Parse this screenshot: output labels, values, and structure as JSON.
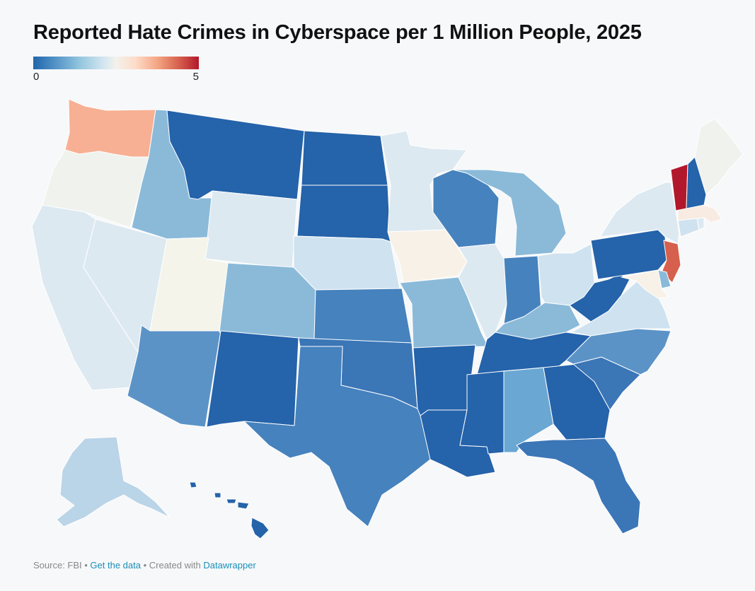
{
  "title": "Reported Hate Crimes in Cyberspace per 1 Million People, 2025",
  "legend": {
    "min_label": "0",
    "max_label": "5"
  },
  "footer": {
    "source": "Source: FBI",
    "sep1": " • ",
    "get_data": "Get the data",
    "sep2": " • Created with ",
    "datawrapper": "Datawrapper"
  },
  "colors": {
    "WA": "#f7b093",
    "OR": "#eff2ed",
    "CA": "#dde9f1",
    "NV": "#dde9f1",
    "ID": "#8bbad9",
    "MT": "#2563aa",
    "WY": "#dde9f1",
    "UT": "#f4f4ea",
    "AZ": "#5b93c7",
    "CO": "#8bbad9",
    "NM": "#2563aa",
    "ND": "#2563aa",
    "SD": "#2563aa",
    "NE": "#cfe2ef",
    "KS": "#4682bd",
    "OK": "#3b76b7",
    "TX": "#4682bd",
    "MN": "#dde9f1",
    "IA": "#f8f1e7",
    "MO": "#8bbad9",
    "AR": "#2563aa",
    "LA": "#2563aa",
    "WI": "#4682bd",
    "IL": "#dde9f1",
    "MI": "#8bbad9",
    "IN": "#4682bd",
    "OH": "#cfe2ef",
    "KY": "#8bbad9",
    "TN": "#2563aa",
    "MS": "#2563aa",
    "AL": "#6aa7d3",
    "GA": "#2563aa",
    "FL": "#3b76b7",
    "SC": "#3b76b7",
    "NC": "#5b93c7",
    "VA": "#cfe2ef",
    "WV": "#2563aa",
    "PA": "#2563aa",
    "NY": "#dde9f1",
    "NJ": "#d6604d",
    "DE": "#8bbad9",
    "MD": "#f8f1e7",
    "CT": "#cfe2ef",
    "RI": "#dde9f1",
    "MA": "#f8ebe2",
    "VT": "#b2182b",
    "NH": "#2563aa",
    "ME": "#eff2ed",
    "AK": "#bad4e8",
    "HI": "#2563aa"
  }
}
